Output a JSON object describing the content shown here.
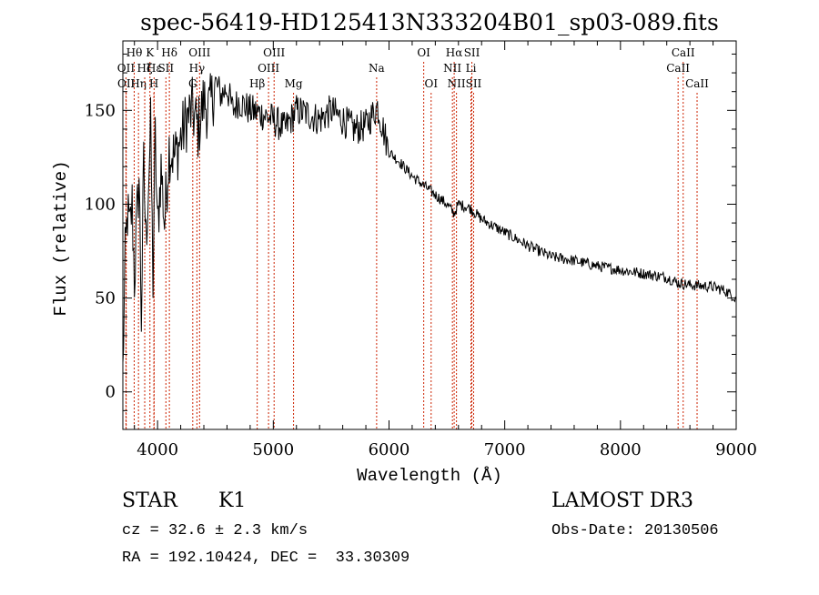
{
  "chart_data": {
    "type": "line",
    "title": "spec-56419-HD125413N333204B01_sp03-089.fits",
    "xlabel": "Wavelength (Å)",
    "ylabel": "Flux (relative)",
    "xlim": [
      3700,
      9000
    ],
    "ylim": [
      -20,
      187
    ],
    "x_ticks": [
      4000,
      5000,
      6000,
      7000,
      8000,
      9000
    ],
    "y_ticks": [
      0,
      50,
      100,
      150
    ],
    "series": [
      {
        "name": "spectrum",
        "x": [
          3700,
          3720,
          3740,
          3760,
          3780,
          3800,
          3820,
          3840,
          3860,
          3880,
          3900,
          3920,
          3940,
          3960,
          3980,
          4000,
          4030,
          4060,
          4100,
          4150,
          4200,
          4250,
          4300,
          4350,
          4400,
          4450,
          4500,
          4550,
          4600,
          4650,
          4700,
          4800,
          4900,
          5000,
          5100,
          5200,
          5300,
          5400,
          5500,
          5600,
          5700,
          5800,
          5900,
          5950,
          6000,
          6100,
          6200,
          6300,
          6400,
          6500,
          6563,
          6600,
          6700,
          6800,
          7000,
          7200,
          7400,
          7600,
          7800,
          8000,
          8200,
          8400,
          8500,
          8600,
          8800,
          8900,
          8950,
          9000
        ],
        "y": [
          10,
          70,
          95,
          85,
          100,
          60,
          90,
          115,
          40,
          120,
          80,
          110,
          140,
          60,
          135,
          85,
          120,
          90,
          130,
          125,
          135,
          145,
          150,
          140,
          155,
          150,
          165,
          158,
          162,
          150,
          155,
          150,
          148,
          145,
          140,
          150,
          148,
          145,
          150,
          145,
          140,
          142,
          152,
          140,
          128,
          122,
          115,
          110,
          105,
          100,
          95,
          100,
          98,
          92,
          85,
          78,
          72,
          70,
          67,
          65,
          63,
          61,
          58,
          57,
          56,
          54,
          52,
          50
        ]
      }
    ],
    "line_markers": [
      {
        "label": "Hθ",
        "wavelength": 3798,
        "row": 0
      },
      {
        "label": "OII",
        "wavelength": 3727,
        "row": 1
      },
      {
        "label": "OII",
        "wavelength": 3729,
        "row": 2
      },
      {
        "label": "K",
        "wavelength": 3934,
        "row": 0
      },
      {
        "label": "Hε",
        "wavelength": 3970,
        "row": 1
      },
      {
        "label": "Hη",
        "wavelength": 3835,
        "row": 2
      },
      {
        "label": "Hζ",
        "wavelength": 3889,
        "row": 1
      },
      {
        "label": "H",
        "wavelength": 3968,
        "row": 2
      },
      {
        "label": "Hδ",
        "wavelength": 4102,
        "row": 0
      },
      {
        "label": "SII",
        "wavelength": 4072,
        "row": 1
      },
      {
        "label": "OIII",
        "wavelength": 4363,
        "row": 0
      },
      {
        "label": "Hγ",
        "wavelength": 4340,
        "row": 1
      },
      {
        "label": "G",
        "wavelength": 4304,
        "row": 2
      },
      {
        "label": "OIII",
        "wavelength": 5007,
        "row": 0
      },
      {
        "label": "OIII",
        "wavelength": 4959,
        "row": 1
      },
      {
        "label": "Hβ",
        "wavelength": 4861,
        "row": 2
      },
      {
        "label": "Mg",
        "wavelength": 5175,
        "row": 2
      },
      {
        "label": "Na",
        "wavelength": 5893,
        "row": 1
      },
      {
        "label": "OI",
        "wavelength": 6300,
        "row": 0
      },
      {
        "label": "OI",
        "wavelength": 6364,
        "row": 2
      },
      {
        "label": "Hα",
        "wavelength": 6563,
        "row": 0
      },
      {
        "label": "NII",
        "wavelength": 6548,
        "row": 1
      },
      {
        "label": "NII",
        "wavelength": 6583,
        "row": 2
      },
      {
        "label": "SII",
        "wavelength": 6716,
        "row": 0
      },
      {
        "label": "Li",
        "wavelength": 6708,
        "row": 1
      },
      {
        "label": "SII",
        "wavelength": 6731,
        "row": 2
      },
      {
        "label": "CaII",
        "wavelength": 8542,
        "row": 0
      },
      {
        "label": "CaII",
        "wavelength": 8498,
        "row": 1
      },
      {
        "label": "CaII",
        "wavelength": 8662,
        "row": 2
      }
    ],
    "marker_color": "#cc2200",
    "grid": false
  },
  "info": {
    "object_type": "STAR",
    "subclass": "K1",
    "cz": "cz = 32.6 ± 2.3 km/s",
    "coords": "RA = 192.10424, DEC =  33.30309",
    "survey": "LAMOST DR3",
    "obs_date": "Obs-Date: 20130506"
  }
}
